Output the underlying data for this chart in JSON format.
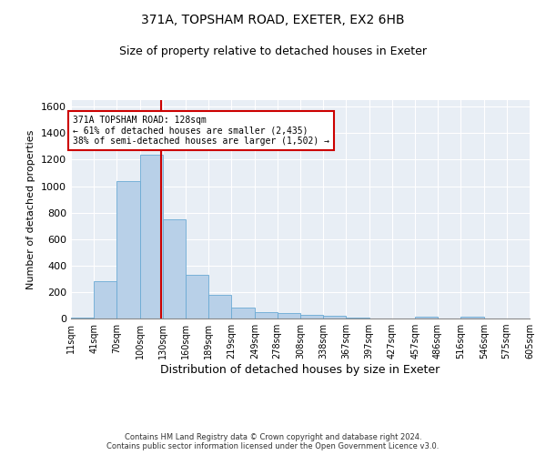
{
  "title": "371A, TOPSHAM ROAD, EXETER, EX2 6HB",
  "subtitle": "Size of property relative to detached houses in Exeter",
  "xlabel": "Distribution of detached houses by size in Exeter",
  "ylabel": "Number of detached properties",
  "bar_color": "#b8d0e8",
  "bar_edgecolor": "#6aaad4",
  "background_color": "#e8eef5",
  "grid_color": "#ffffff",
  "vline_x": 128,
  "vline_color": "#cc0000",
  "annotation_text": "371A TOPSHAM ROAD: 128sqm\n← 61% of detached houses are smaller (2,435)\n38% of semi-detached houses are larger (1,502) →",
  "annotation_box_color": "#ffffff",
  "annotation_box_edgecolor": "#cc0000",
  "bin_edges": [
    11,
    41,
    70,
    100,
    130,
    160,
    189,
    219,
    249,
    278,
    308,
    338,
    367,
    397,
    427,
    457,
    486,
    516,
    546,
    575,
    605
  ],
  "bin_counts": [
    10,
    280,
    1035,
    1240,
    750,
    330,
    180,
    80,
    45,
    38,
    30,
    18,
    5,
    0,
    0,
    12,
    0,
    12,
    0,
    0
  ],
  "ylim": [
    0,
    1650
  ],
  "yticks": [
    0,
    200,
    400,
    600,
    800,
    1000,
    1200,
    1400,
    1600
  ],
  "footer_text": "Contains HM Land Registry data © Crown copyright and database right 2024.\nContains public sector information licensed under the Open Government Licence v3.0.",
  "title_fontsize": 10,
  "subtitle_fontsize": 9,
  "xlabel_fontsize": 9,
  "ylabel_fontsize": 8,
  "tick_fontsize": 7,
  "tick_labels": [
    "11sqm",
    "41sqm",
    "70sqm",
    "100sqm",
    "130sqm",
    "160sqm",
    "189sqm",
    "219sqm",
    "249sqm",
    "278sqm",
    "308sqm",
    "338sqm",
    "367sqm",
    "397sqm",
    "427sqm",
    "457sqm",
    "486sqm",
    "516sqm",
    "546sqm",
    "575sqm",
    "605sqm"
  ]
}
